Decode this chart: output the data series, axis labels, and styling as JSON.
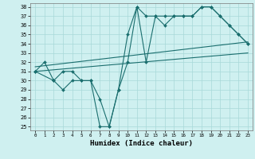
{
  "xlabel": "Humidex (Indice chaleur)",
  "bg_color": "#cff0f0",
  "grid_color": "#a8d8d8",
  "line_color": "#1a6e6e",
  "xlim_min": -0.5,
  "xlim_max": 23.5,
  "ylim_min": 24.6,
  "ylim_max": 38.4,
  "yticks": [
    25,
    26,
    27,
    28,
    29,
    30,
    31,
    32,
    33,
    34,
    35,
    36,
    37,
    38
  ],
  "xticks": [
    0,
    1,
    2,
    3,
    4,
    5,
    6,
    7,
    8,
    9,
    10,
    11,
    12,
    13,
    14,
    15,
    16,
    17,
    18,
    19,
    20,
    21,
    22,
    23
  ],
  "line1_x": [
    0,
    1,
    2,
    3,
    4,
    5,
    6,
    7,
    8,
    9,
    10,
    11,
    12,
    13,
    14,
    15,
    16,
    17,
    18,
    19,
    20,
    21,
    22,
    23
  ],
  "line1_y": [
    31,
    32,
    30,
    29,
    30,
    30,
    30,
    28,
    25,
    29,
    35,
    38,
    37,
    37,
    36,
    37,
    37,
    37,
    38,
    38,
    37,
    36,
    35,
    34
  ],
  "line2_x": [
    0,
    2,
    3,
    4,
    5,
    6,
    7,
    8,
    9,
    10,
    11,
    12,
    13,
    14,
    15,
    16,
    17,
    18,
    19,
    20,
    21,
    22,
    23
  ],
  "line2_y": [
    31,
    30,
    31,
    31,
    30,
    30,
    25,
    25,
    29,
    32,
    38,
    32,
    37,
    37,
    37,
    37,
    37,
    38,
    38,
    37,
    36,
    35,
    34
  ],
  "trend1_x": [
    0,
    23
  ],
  "trend1_y": [
    31.5,
    34.2
  ],
  "trend2_x": [
    0,
    23
  ],
  "trend2_y": [
    31.0,
    33.0
  ]
}
